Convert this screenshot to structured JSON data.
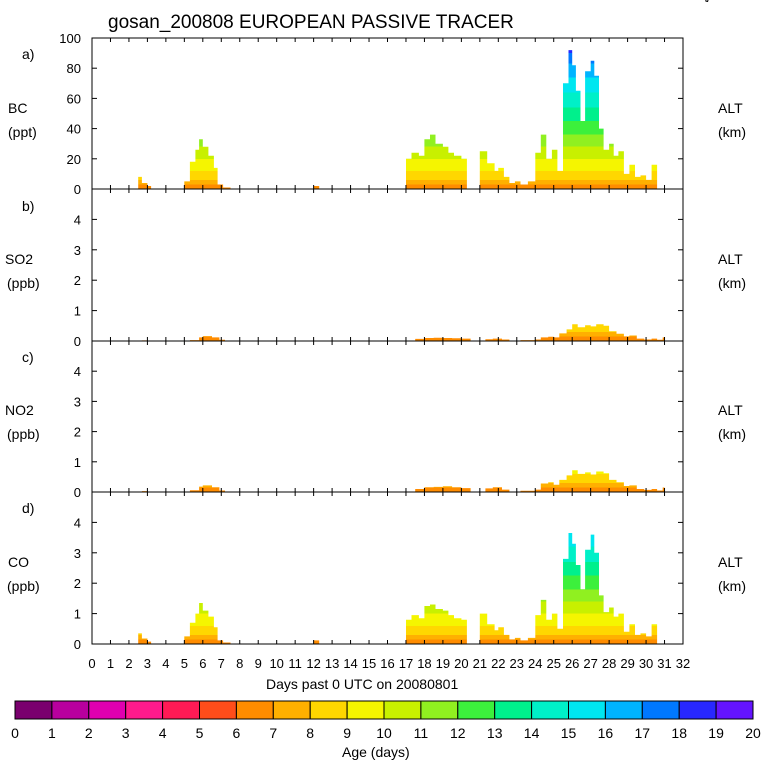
{
  "figure": {
    "title": "gosan_200808 EUROPEAN PASSIVE TRACER",
    "x_axis_label": "Days past 0 UTC on 20080801",
    "colorbar_label": "Age (days)"
  },
  "colorbar": {
    "ticks": [
      "0",
      "1",
      "2",
      "3",
      "4",
      "5",
      "6",
      "7",
      "8",
      "9",
      "10",
      "11",
      "12",
      "13",
      "14",
      "15",
      "16",
      "17",
      "18",
      "19",
      "20"
    ],
    "colors": [
      "#7a006e",
      "#b8009e",
      "#e000b0",
      "#ff1a8c",
      "#ff1a55",
      "#ff4d1a",
      "#ff8c00",
      "#ffb000",
      "#ffd700",
      "#f5f500",
      "#c8f000",
      "#90f020",
      "#3cf03c",
      "#00f08c",
      "#00f0c8",
      "#00e6f0",
      "#00b4ff",
      "#0078ff",
      "#2828ff",
      "#6414ff"
    ]
  },
  "panels": [
    {
      "letter": "a)",
      "species": "BC",
      "unit": "(ppt)",
      "right_label": "ALT",
      "right_unit": "(km)"
    },
    {
      "letter": "b)",
      "species": "SO2",
      "unit": "(ppb)",
      "right_label": "ALT",
      "right_unit": "(km)"
    },
    {
      "letter": "c)",
      "species": "NO2",
      "unit": "(ppb)",
      "right_label": "ALT",
      "right_unit": "(km)"
    },
    {
      "letter": "d)",
      "species": "CO",
      "unit": "(ppb)",
      "right_label": "ALT",
      "right_unit": "(km)"
    }
  ],
  "chart_data": {
    "type": "area",
    "x_ticks": [
      "0",
      "1",
      "2",
      "3",
      "4",
      "5",
      "6",
      "7",
      "8",
      "9",
      "10",
      "11",
      "12",
      "13",
      "14",
      "15",
      "16",
      "17",
      "18",
      "19",
      "20",
      "21",
      "22",
      "23",
      "24",
      "25",
      "26",
      "27",
      "28",
      "29",
      "30",
      "31",
      "32"
    ],
    "xlim": [
      0,
      32
    ],
    "panels": [
      {
        "name": "BC",
        "ylim": [
          0,
          100
        ],
        "yticks": [
          "0",
          "20",
          "40",
          "60",
          "80",
          "100"
        ],
        "series": {
          "x": [
            2.2,
            2.5,
            2.7,
            3.0,
            3.2,
            4.7,
            5.0,
            5.3,
            5.6,
            5.8,
            6.0,
            6.3,
            6.6,
            6.8,
            7.1,
            7.5,
            8.0,
            11.7,
            12.0,
            12.3,
            16.2,
            17.0,
            17.3,
            17.7,
            18.0,
            18.3,
            18.6,
            19.0,
            19.3,
            19.6,
            20.0,
            20.3,
            20.6,
            21.0,
            21.4,
            21.8,
            22.0,
            22.3,
            22.6,
            22.9,
            23.2,
            23.6,
            24.0,
            24.3,
            24.6,
            24.9,
            25.2,
            25.5,
            25.8,
            26.0,
            26.2,
            26.45,
            26.7,
            27.0,
            27.2,
            27.45,
            27.7,
            28.0,
            28.25,
            28.5,
            28.8,
            29.1,
            29.4,
            29.7,
            30.0,
            30.3,
            30.6,
            30.9,
            31.0,
            31.1
          ],
          "total": [
            0,
            8,
            4,
            2,
            0,
            0,
            5,
            18,
            26,
            33,
            28,
            22,
            14,
            3,
            1,
            0,
            0,
            0,
            2,
            0,
            0,
            20,
            24,
            22,
            33,
            36,
            30,
            28,
            24,
            22,
            20,
            0,
            0,
            25,
            17,
            12,
            14,
            8,
            4,
            5,
            3,
            5,
            24,
            36,
            20,
            26,
            12,
            70,
            92,
            82,
            65,
            45,
            78,
            85,
            75,
            40,
            26,
            30,
            22,
            25,
            10,
            16,
            8,
            9,
            6,
            16,
            0,
            0,
            0,
            0
          ]
        }
      },
      {
        "name": "SO2",
        "ylim": [
          0,
          5
        ],
        "yticks": [
          "0",
          "1",
          "2",
          "3",
          "4"
        ],
        "series": {
          "x": [
            2.3,
            2.7,
            3.0,
            4.8,
            5.3,
            5.8,
            6.0,
            6.5,
            6.9,
            7.2,
            17.0,
            17.5,
            18.0,
            18.5,
            19.0,
            19.5,
            20.0,
            20.5,
            21.0,
            21.3,
            21.7,
            22.2,
            22.6,
            23.0,
            23.2,
            23.6,
            24.0,
            24.3,
            24.7,
            25.0,
            25.3,
            25.7,
            26.0,
            26.3,
            26.7,
            27.0,
            27.3,
            27.7,
            28.0,
            28.4,
            28.8,
            29.1,
            29.5,
            29.9,
            30.3,
            30.6,
            30.9,
            31.0
          ],
          "total": [
            0,
            0.02,
            0,
            0,
            0.03,
            0.12,
            0.16,
            0.12,
            0.04,
            0,
            0,
            0.07,
            0.1,
            0.11,
            0.1,
            0.09,
            0.08,
            0,
            0,
            0.06,
            0.08,
            0.05,
            0,
            0,
            0.03,
            0.03,
            0.05,
            0.12,
            0.14,
            0.12,
            0.25,
            0.38,
            0.55,
            0.45,
            0.52,
            0.48,
            0.55,
            0.5,
            0.32,
            0.24,
            0.15,
            0.18,
            0.08,
            0.05,
            0.08,
            0.04,
            0.12,
            0
          ]
        }
      },
      {
        "name": "NO2",
        "ylim": [
          0,
          5
        ],
        "yticks": [
          "0",
          "1",
          "2",
          "3",
          "4"
        ],
        "series": {
          "x": [
            2.3,
            2.7,
            3.0,
            4.8,
            5.3,
            5.8,
            6.0,
            6.5,
            6.9,
            7.2,
            17.0,
            17.5,
            18.0,
            18.5,
            19.0,
            19.5,
            20.0,
            20.5,
            21.0,
            21.3,
            21.7,
            22.2,
            22.6,
            23.0,
            23.2,
            23.6,
            24.0,
            24.3,
            24.7,
            25.0,
            25.3,
            25.7,
            26.0,
            26.3,
            26.7,
            27.0,
            27.3,
            27.7,
            28.0,
            28.4,
            28.8,
            29.1,
            29.5,
            29.9,
            30.3,
            30.6,
            30.9,
            31.0
          ],
          "total": [
            0,
            0.03,
            0,
            0,
            0.06,
            0.18,
            0.22,
            0.16,
            0.05,
            0,
            0,
            0.1,
            0.16,
            0.17,
            0.19,
            0.16,
            0.13,
            0,
            0,
            0.12,
            0.16,
            0.08,
            0,
            0,
            0.04,
            0.04,
            0.08,
            0.28,
            0.32,
            0.24,
            0.4,
            0.55,
            0.72,
            0.6,
            0.65,
            0.58,
            0.68,
            0.62,
            0.4,
            0.32,
            0.2,
            0.22,
            0.1,
            0.07,
            0.1,
            0.05,
            0.15,
            0
          ]
        }
      },
      {
        "name": "CO",
        "ylim": [
          0,
          5
        ],
        "yticks": [
          "0",
          "1",
          "2",
          "3",
          "4"
        ],
        "series": {
          "x": [
            2.2,
            2.5,
            2.7,
            3.0,
            3.2,
            4.7,
            5.0,
            5.3,
            5.6,
            5.8,
            6.0,
            6.3,
            6.6,
            6.8,
            7.1,
            7.5,
            8.0,
            11.7,
            12.0,
            12.3,
            16.2,
            17.0,
            17.3,
            17.7,
            18.0,
            18.3,
            18.6,
            19.0,
            19.3,
            19.6,
            20.0,
            20.3,
            20.6,
            21.0,
            21.4,
            21.8,
            22.0,
            22.3,
            22.6,
            22.9,
            23.2,
            23.6,
            24.0,
            24.3,
            24.6,
            24.9,
            25.2,
            25.5,
            25.8,
            26.0,
            26.2,
            26.45,
            26.7,
            27.0,
            27.2,
            27.45,
            27.7,
            28.0,
            28.25,
            28.5,
            28.8,
            29.1,
            29.4,
            29.7,
            30.0,
            30.3,
            30.6,
            30.9,
            31.0,
            31.1
          ],
          "total": [
            0,
            0.35,
            0.18,
            0.08,
            0,
            0,
            0.25,
            0.7,
            1.0,
            1.35,
            1.1,
            0.9,
            0.55,
            0.12,
            0.05,
            0,
            0,
            0,
            0.12,
            0,
            0,
            0.8,
            0.95,
            0.85,
            1.25,
            1.3,
            1.15,
            1.1,
            0.95,
            0.85,
            0.8,
            0,
            0,
            1.0,
            0.65,
            0.45,
            0.55,
            0.3,
            0.15,
            0.2,
            0.12,
            0.2,
            0.95,
            1.45,
            0.8,
            1.0,
            0.5,
            2.8,
            3.65,
            3.3,
            2.6,
            1.8,
            3.1,
            3.6,
            3.0,
            1.6,
            1.05,
            1.2,
            0.9,
            1.0,
            0.4,
            0.65,
            0.3,
            0.35,
            0.25,
            0.65,
            0,
            0,
            0,
            0
          ]
        }
      }
    ]
  }
}
